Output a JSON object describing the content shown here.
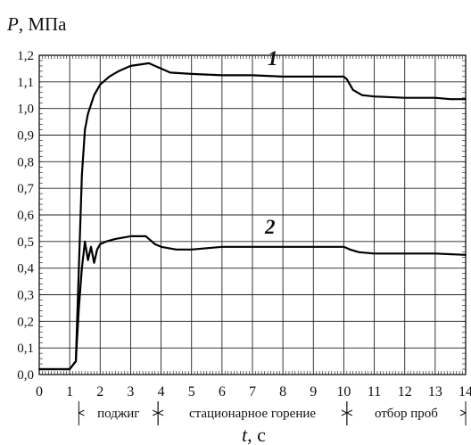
{
  "chart_data": {
    "type": "line",
    "ylabel_italic": "P",
    "ylabel_rest": ", МПа",
    "xlabel_italic": "t",
    "xlabel_rest": ", с",
    "xlim": [
      0,
      14
    ],
    "ylim": [
      0,
      1.2
    ],
    "x_ticks": [
      0,
      1,
      2,
      3,
      4,
      5,
      6,
      7,
      8,
      9,
      10,
      11,
      12,
      13,
      14
    ],
    "x_tick_labels": [
      "0",
      "1",
      "2",
      "3",
      "4",
      "5",
      "6",
      "7",
      "8",
      "9",
      "10",
      "11",
      "12",
      "13",
      "14"
    ],
    "y_ticks": [
      0.0,
      0.1,
      0.2,
      0.3,
      0.4,
      0.5,
      0.6,
      0.7,
      0.8,
      0.9,
      1.0,
      1.1,
      1.2
    ],
    "y_tick_labels": [
      "0,0",
      "0,1",
      "0,2",
      "0,3",
      "0,4",
      "0,5",
      "0,6",
      "0,7",
      "0,8",
      "0,9",
      "1,0",
      "1,1",
      "1,2"
    ],
    "grid": true,
    "series": [
      {
        "name": "1",
        "x": [
          0,
          0.5,
          1.0,
          1.2,
          1.3,
          1.4,
          1.5,
          1.6,
          1.8,
          2.0,
          2.3,
          2.6,
          3.0,
          3.3,
          3.6,
          3.8,
          4.0,
          4.3,
          5.0,
          6.0,
          7.0,
          8.0,
          9.0,
          10.0,
          10.1,
          10.3,
          10.6,
          11.0,
          12.0,
          13.0,
          13.5,
          14.0
        ],
        "y": [
          0.02,
          0.02,
          0.02,
          0.05,
          0.4,
          0.75,
          0.92,
          0.98,
          1.05,
          1.09,
          1.12,
          1.14,
          1.16,
          1.165,
          1.17,
          1.16,
          1.15,
          1.135,
          1.13,
          1.125,
          1.125,
          1.12,
          1.12,
          1.12,
          1.11,
          1.07,
          1.05,
          1.045,
          1.04,
          1.04,
          1.035,
          1.035
        ]
      },
      {
        "name": "2",
        "x": [
          0,
          0.5,
          1.0,
          1.2,
          1.3,
          1.4,
          1.5,
          1.6,
          1.7,
          1.8,
          1.9,
          2.0,
          2.2,
          2.5,
          3.0,
          3.5,
          3.7,
          3.8,
          4.0,
          4.5,
          5.0,
          6.0,
          7.0,
          8.0,
          9.0,
          10.0,
          10.2,
          10.5,
          11.0,
          12.0,
          13.0,
          14.0
        ],
        "y": [
          0.02,
          0.02,
          0.02,
          0.05,
          0.25,
          0.4,
          0.5,
          0.43,
          0.48,
          0.42,
          0.47,
          0.49,
          0.5,
          0.51,
          0.52,
          0.52,
          0.5,
          0.49,
          0.48,
          0.47,
          0.47,
          0.48,
          0.48,
          0.48,
          0.48,
          0.48,
          0.47,
          0.46,
          0.455,
          0.455,
          0.455,
          0.45
        ]
      }
    ],
    "series_labels": [
      "1",
      "2"
    ],
    "phases": [
      {
        "label": "поджиг",
        "start": 1.3,
        "end": 3.9
      },
      {
        "label": "стационарное горение",
        "start": 3.9,
        "end": 10.1
      },
      {
        "label": "отбор проб",
        "start": 10.1,
        "end": 14.0
      }
    ]
  }
}
